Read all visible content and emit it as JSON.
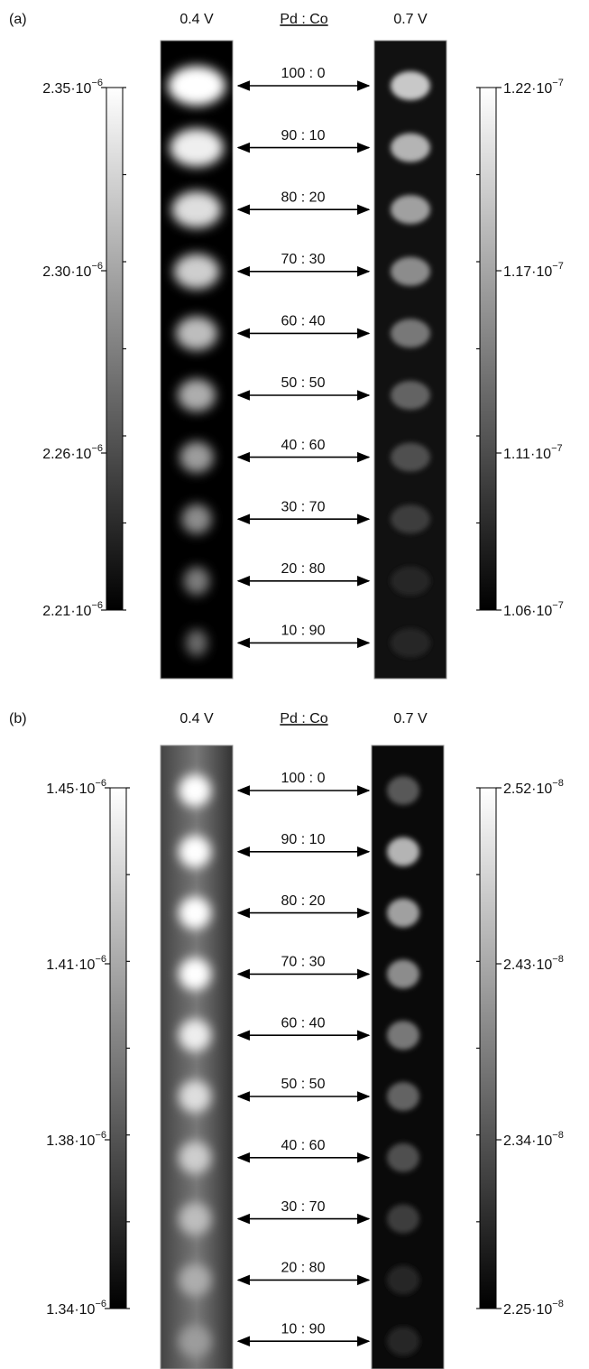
{
  "panels": [
    {
      "label": "(a)",
      "left_voltage": "0.4 V",
      "ratio_header": "Pd : Co",
      "right_voltage": "0.7 V",
      "ratios": [
        "100 : 0",
        "90 : 10",
        "80 : 20",
        "70 : 30",
        "60 : 40",
        "50 : 50",
        "40 : 60",
        "30 : 70",
        "20 : 80",
        "10 : 90"
      ],
      "left_scale": [
        {
          "base": "2.35·10",
          "exp": "−6"
        },
        {
          "base": "2.30·10",
          "exp": "−6"
        },
        {
          "base": "2.26·10",
          "exp": "−6"
        },
        {
          "base": "2.21·10",
          "exp": "−6"
        }
      ],
      "right_scale": [
        {
          "base": "1.22·10",
          "exp": "−7"
        },
        {
          "base": "1.17·10",
          "exp": "−7"
        },
        {
          "base": "1.11·10",
          "exp": "−7"
        },
        {
          "base": "1.06·10",
          "exp": "−7"
        }
      ]
    },
    {
      "label": "(b)",
      "left_voltage": "0.4 V",
      "ratio_header": "Pd : Co",
      "right_voltage": "0.7 V",
      "ratios": [
        "100 : 0",
        "90 : 10",
        "80 : 20",
        "70 : 30",
        "60 : 40",
        "50 : 50",
        "40 : 60",
        "30 : 70",
        "20 : 80",
        "10 : 90"
      ],
      "left_scale": [
        {
          "base": "1.45·10",
          "exp": "−6"
        },
        {
          "base": "1.41·10",
          "exp": "−6"
        },
        {
          "base": "1.38·10",
          "exp": "−6"
        },
        {
          "base": "1.34·10",
          "exp": "−6"
        }
      ],
      "right_scale": [
        {
          "base": "2.52·10",
          "exp": "−8"
        },
        {
          "base": "2.43·10",
          "exp": "−8"
        },
        {
          "base": "2.34·10",
          "exp": "−8"
        },
        {
          "base": "2.25·10",
          "exp": "−8"
        }
      ]
    }
  ]
}
